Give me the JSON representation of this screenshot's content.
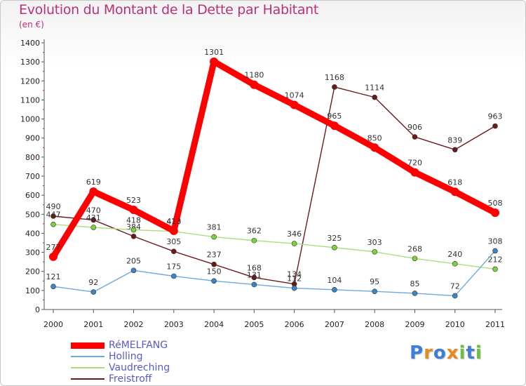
{
  "header": {
    "title": "Evolution du Montant de la Dette par Habitant",
    "subtitle": "(en €)"
  },
  "chart_data": {
    "type": "line",
    "title": "Evolution du Montant de la Dette par Habitant",
    "ylabel": "(en €)",
    "xlabel": "",
    "ylim": [
      0,
      1400
    ],
    "ytick_step": 100,
    "grid": false,
    "legend_position": "bottom-left",
    "categories": [
      "2000",
      "2001",
      "2002",
      "2003",
      "2004",
      "2005",
      "2006",
      "2007",
      "2008",
      "2009",
      "2010",
      "2011"
    ],
    "series": [
      {
        "name": "Freistroff",
        "color": "#6b1a1a",
        "marker": "#6b1a1a",
        "width": 1.4,
        "values": [
          490,
          470,
          384,
          305,
          237,
          168,
          134,
          1168,
          1114,
          906,
          839,
          963
        ],
        "labels": [
          "490",
          "470",
          "384",
          "305",
          "237",
          "168",
          "134",
          "1168",
          "1114",
          "906",
          "839",
          "963"
        ]
      },
      {
        "name": "Vaudreching",
        "color": "#a6e07a",
        "marker": "#7ed13e",
        "width": 1.4,
        "values": [
          447,
          431,
          418,
          410,
          381,
          362,
          346,
          325,
          303,
          268,
          240,
          212
        ],
        "labels": [
          "447",
          "431",
          "418",
          "410",
          "381",
          "362",
          "346",
          "325",
          "303",
          "268",
          "240",
          "212"
        ]
      },
      {
        "name": "Holling",
        "color": "#6fa8dc",
        "marker": "#3d85c6",
        "width": 1.4,
        "values": [
          121,
          92,
          205,
          175,
          150,
          131,
          112,
          104,
          95,
          85,
          72,
          308
        ],
        "labels": [
          "121",
          "92",
          "205",
          "175",
          "150",
          "131",
          "112",
          "104",
          "95",
          "85",
          "72",
          "308"
        ]
      },
      {
        "name": "RéMELFANG",
        "color": "#ff0000",
        "marker": "#ff0000",
        "width": 9,
        "values": [
          277,
          619,
          523,
          413,
          1301,
          1180,
          1074,
          965,
          850,
          720,
          618,
          508
        ],
        "labels": [
          "277",
          "619",
          "523",
          "413",
          "1301",
          "1180",
          "1074",
          "965",
          "850",
          "720",
          "618",
          "508"
        ]
      }
    ]
  },
  "legend": {
    "items": [
      {
        "label": "RéMELFANG",
        "color": "#ff0000",
        "thickness": 9
      },
      {
        "label": "Holling",
        "color": "#6fa8dc",
        "thickness": 2
      },
      {
        "label": "Vaudreching",
        "color": "#a6e07a",
        "thickness": 2
      },
      {
        "label": "Freistroff",
        "color": "#6b1a1a",
        "thickness": 2
      }
    ]
  },
  "logo": {
    "letters": [
      "P",
      "r",
      "o",
      "x",
      "i",
      "t",
      "i"
    ],
    "colors": [
      "#3d7fd8",
      "#e8891c",
      "#3d7fd8",
      "#e8891c",
      "#6cbf3c",
      "#3d7fd8",
      "#6cbf3c"
    ]
  }
}
